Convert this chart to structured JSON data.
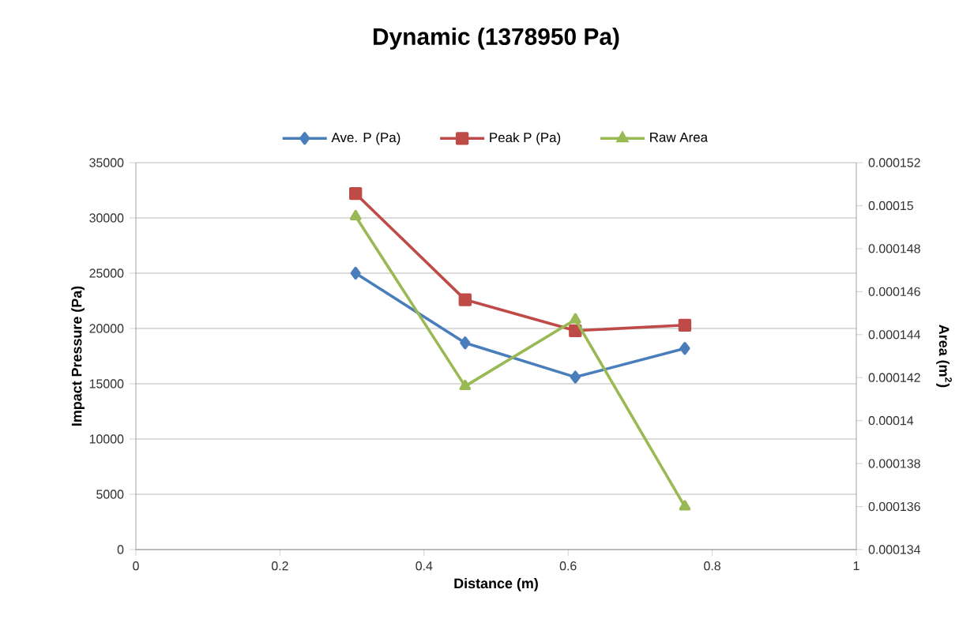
{
  "chart_data": {
    "type": "line",
    "title": "Dynamic (1378950 Pa)",
    "xlabel": "Distance (m)",
    "ylabel": "Impact Pressure (Pa)",
    "y2label": "Area (m$^{2}$)",
    "x": [
      0.305,
      0.457,
      0.61,
      0.762
    ],
    "series": [
      {
        "name": "Ave. P (Pa)",
        "color": "#4a7ebb",
        "marker": "diamond",
        "values": [
          25000,
          18700,
          15600,
          18200
        ]
      },
      {
        "name": "Peak P (Pa)",
        "color": "#be4b48",
        "marker": "square",
        "values": [
          32200,
          22600,
          19800,
          20300
        ]
      },
      {
        "name": "Raw Area",
        "color": "#98b954",
        "marker": "triangle",
        "axis": "y2",
        "values": [
          0.0001495,
          0.0001416,
          0.0001447,
          0.000136
        ]
      }
    ],
    "xlim": [
      0,
      1
    ],
    "xticks": [
      0,
      0.2,
      0.4,
      0.6,
      0.8,
      1
    ],
    "ylim": [
      0,
      35000
    ],
    "yticks": [
      0,
      5000,
      10000,
      15000,
      20000,
      25000,
      30000,
      35000
    ],
    "y2lim": [
      0.000134,
      0.000152
    ],
    "y2ticks": [
      0.000134,
      0.000136,
      0.000138,
      0.00014,
      0.000142,
      0.000144,
      0.000146,
      0.000148,
      0.00015,
      0.000152
    ],
    "grid": "y",
    "legend": "top",
    "line_style": "solid"
  }
}
